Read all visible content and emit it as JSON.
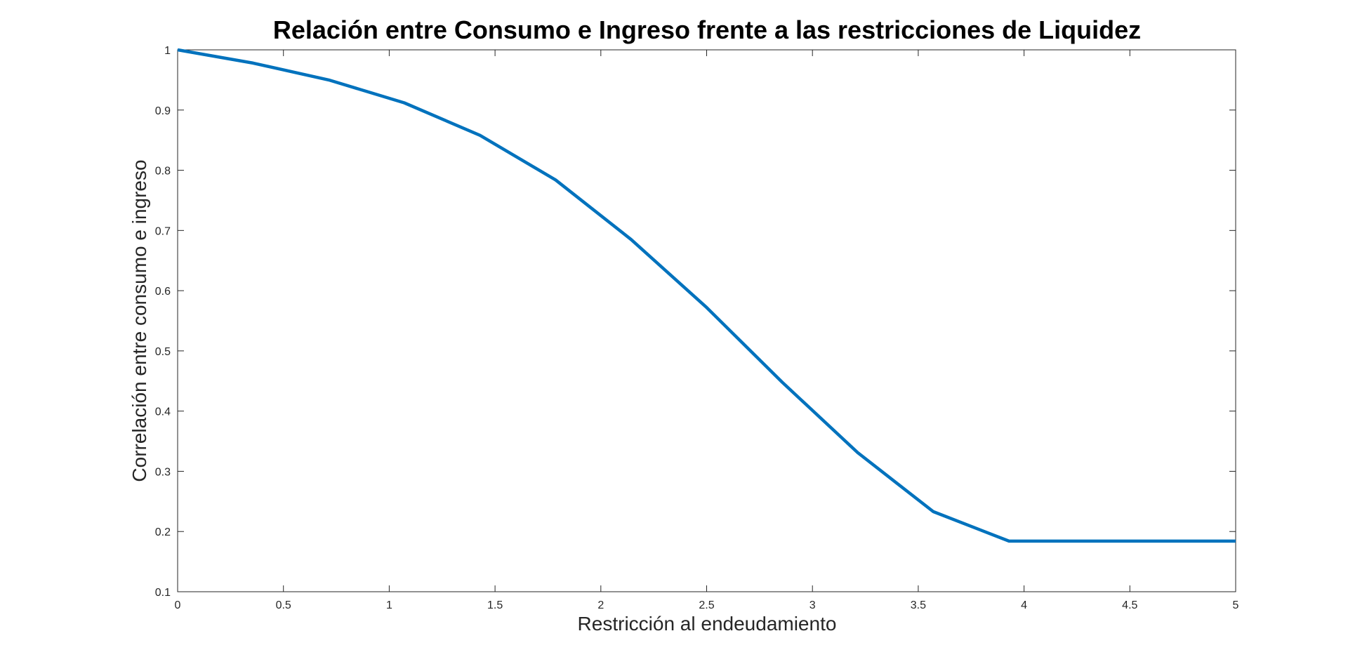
{
  "chart_data": {
    "type": "line",
    "title": "Relación entre Consumo e Ingreso frente a las restricciones de Liquidez",
    "xlabel": "Restricción al endeudamiento",
    "ylabel": "Correlación entre consumo e ingreso",
    "xlim": [
      0,
      5
    ],
    "ylim": [
      0.1,
      1
    ],
    "xticks": [
      0,
      0.5,
      1,
      1.5,
      2,
      2.5,
      3,
      3.5,
      4,
      4.5,
      5
    ],
    "xtick_labels": [
      "0",
      "0.5",
      "1",
      "1.5",
      "2",
      "2.5",
      "3",
      "3.5",
      "4",
      "4.5",
      "5"
    ],
    "yticks": [
      0.1,
      0.2,
      0.3,
      0.4,
      0.5,
      0.6,
      0.7,
      0.8,
      0.9,
      1
    ],
    "ytick_labels": [
      "0.1",
      "0.2",
      "0.3",
      "0.4",
      "0.5",
      "0.6",
      "0.7",
      "0.8",
      "0.9",
      "1"
    ],
    "grid": false,
    "series": [
      {
        "color": "#0072BD",
        "x": [
          0,
          0.357,
          0.714,
          1.071,
          1.429,
          1.786,
          2.143,
          2.5,
          2.857,
          3.214,
          3.571,
          3.929,
          4.286,
          4.643,
          5
        ],
        "y": [
          1.0,
          0.978,
          0.95,
          0.912,
          0.858,
          0.784,
          0.685,
          0.572,
          0.448,
          0.331,
          0.233,
          0.184,
          0.184,
          0.184,
          0.184
        ]
      }
    ]
  }
}
